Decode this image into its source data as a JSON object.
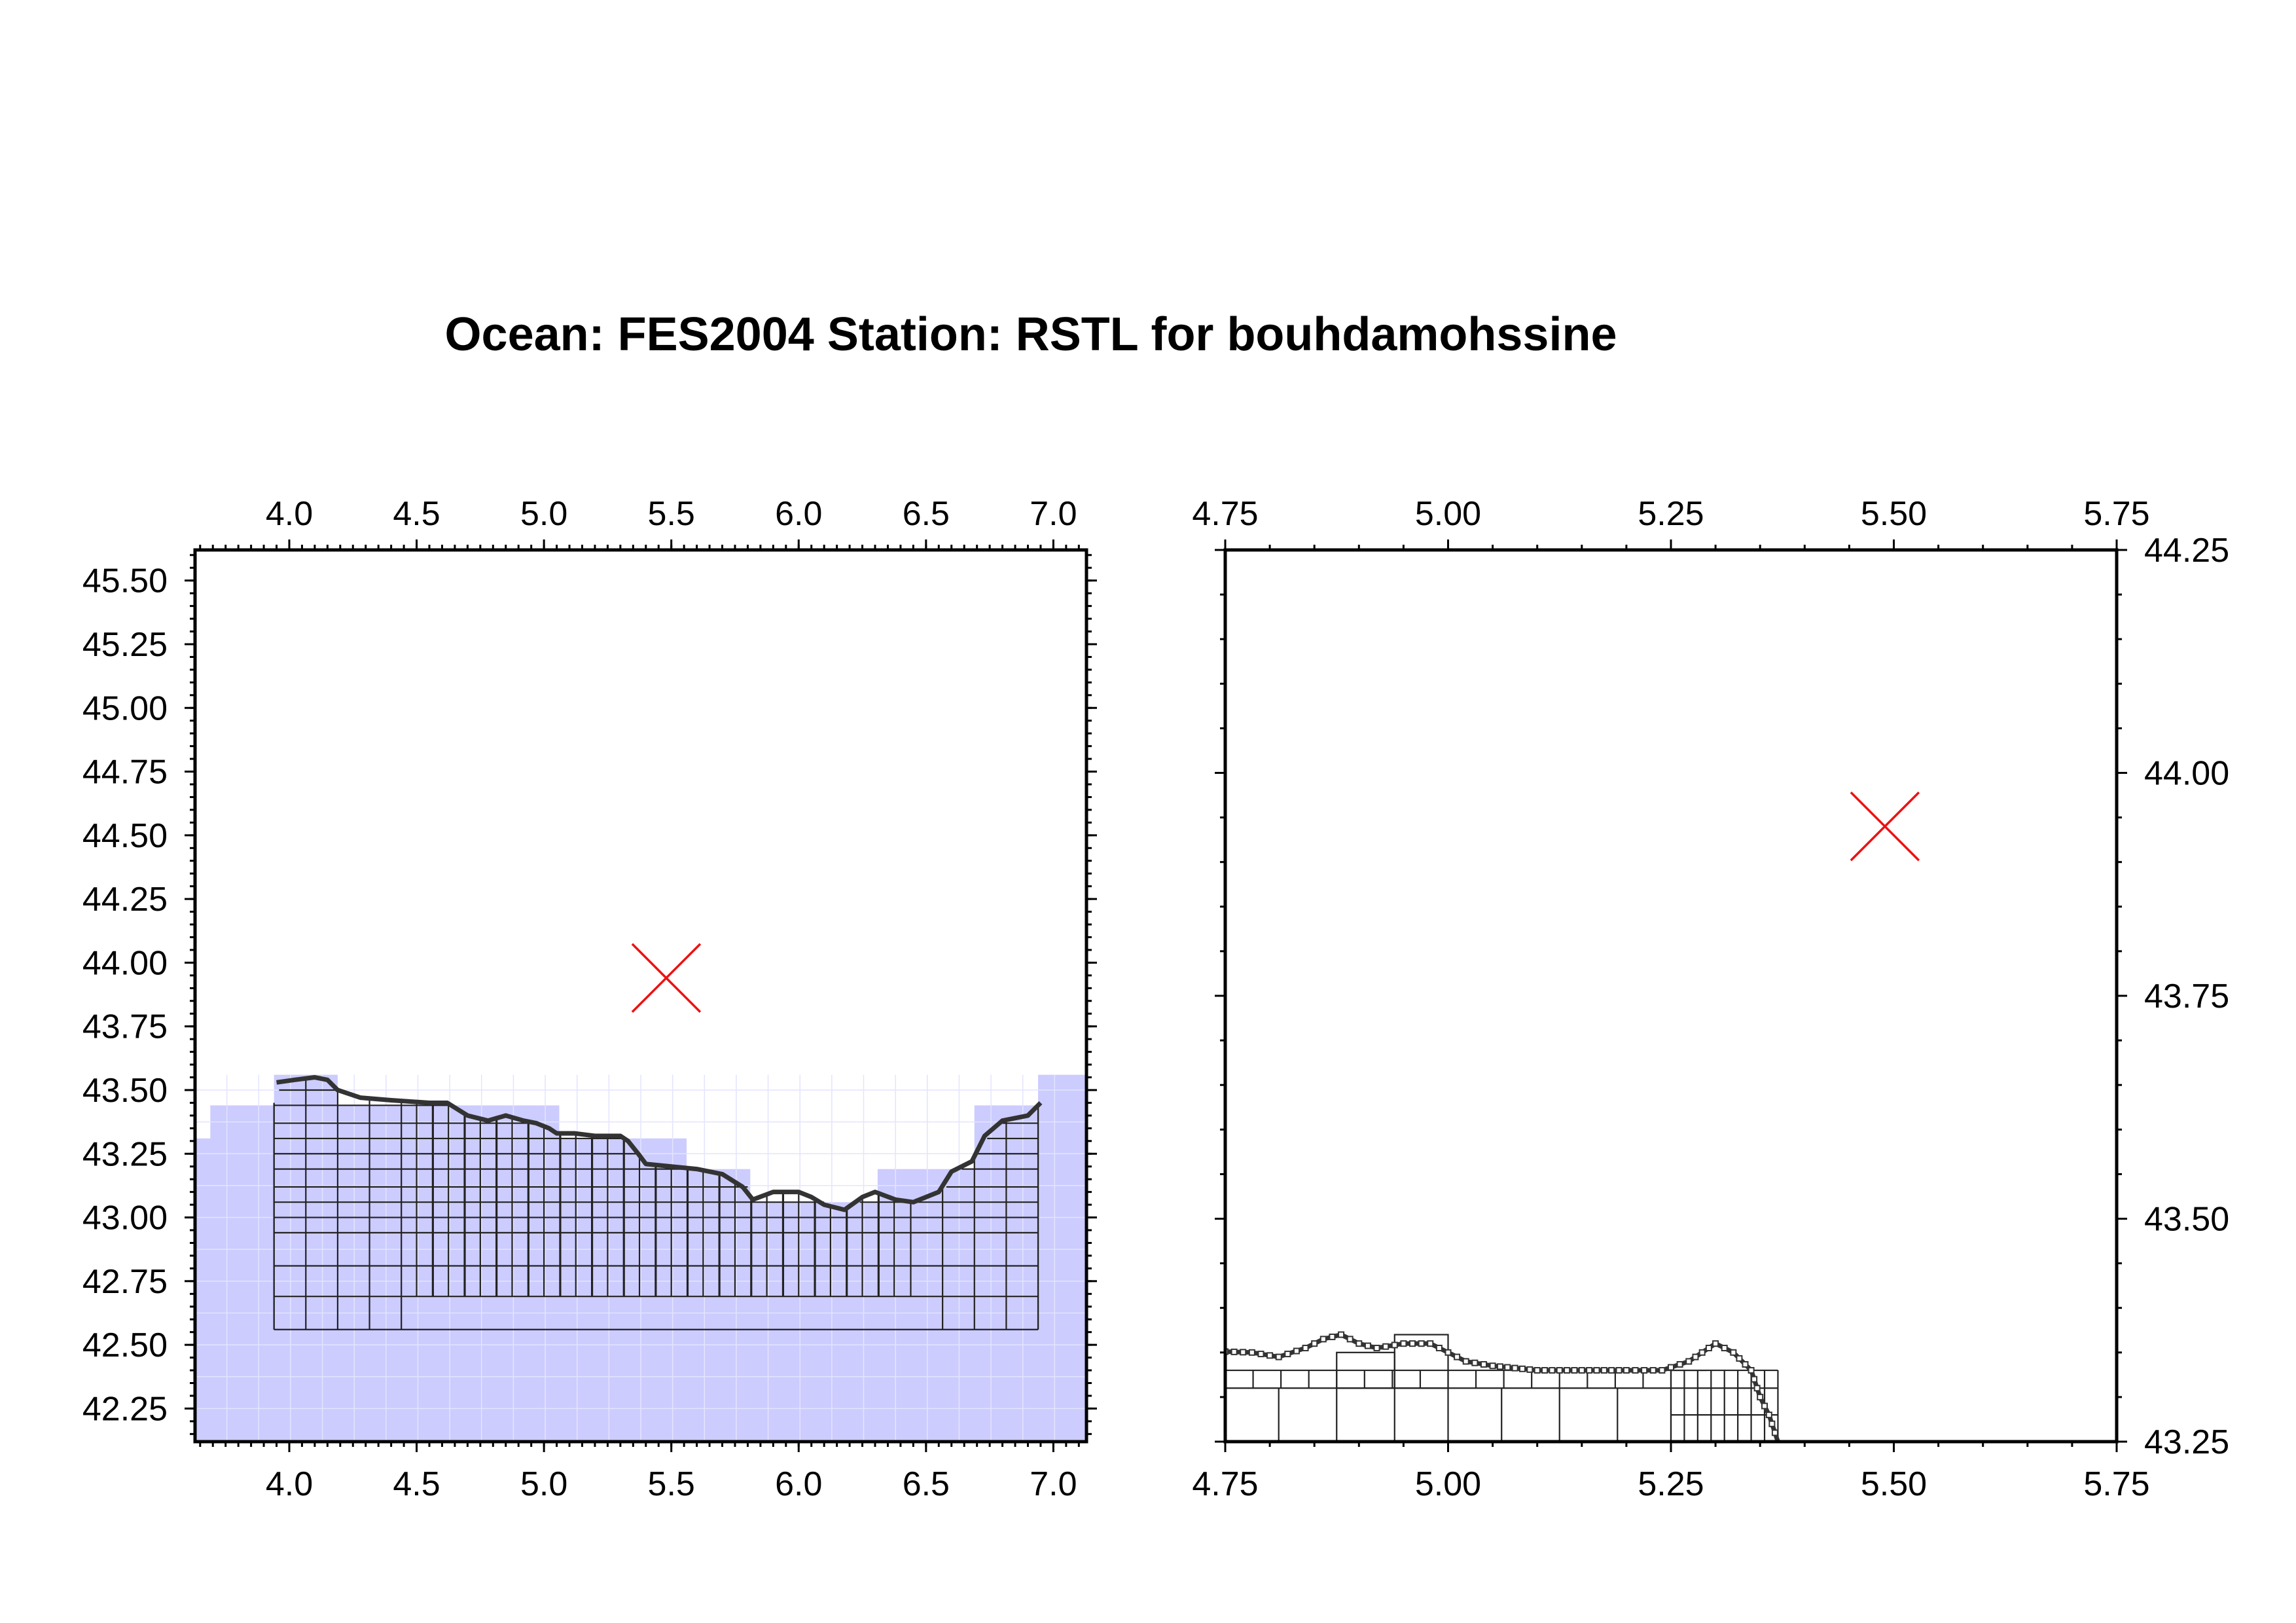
{
  "title": "Ocean: FES2004  Station: RSTL  for bouhdamohssine",
  "colors": {
    "ocean_fill": "#ccccff",
    "ocean_grid": "#e4e4ff",
    "mesh": "#222222",
    "coast": "#333333",
    "station_marker": "#ee1111",
    "axis": "#000000"
  },
  "chart_data": [
    {
      "type": "map",
      "name": "overview",
      "xlim": [
        3.63,
        7.13
      ],
      "ylim": [
        42.12,
        45.62
      ],
      "x_ticks": [
        4.0,
        4.5,
        5.0,
        5.5,
        6.0,
        6.5,
        7.0
      ],
      "x_tick_labels": [
        "4.0",
        "4.5",
        "5.0",
        "5.5",
        "6.0",
        "6.5",
        "7.0"
      ],
      "y_ticks": [
        42.25,
        42.5,
        42.75,
        43.0,
        43.25,
        43.5,
        43.75,
        44.0,
        44.25,
        44.5,
        44.75,
        45.0,
        45.25,
        45.5
      ],
      "y_tick_labels": [
        "42.25",
        "42.50",
        "42.75",
        "43.00",
        "43.25",
        "43.50",
        "43.75",
        "44.00",
        "44.25",
        "44.50",
        "44.75",
        "45.00",
        "45.25",
        "45.50"
      ],
      "x_axis_labels": "top and bottom",
      "y_axis_labels": "left",
      "station": {
        "lon": 5.48,
        "lat": 43.94
      },
      "ocean_mask_profile": [
        [
          3.63,
          43.31
        ],
        [
          3.69,
          43.31
        ],
        [
          3.69,
          43.44
        ],
        [
          3.94,
          43.44
        ],
        [
          3.94,
          43.56
        ],
        [
          4.19,
          43.56
        ],
        [
          4.19,
          43.44
        ],
        [
          5.06,
          43.44
        ],
        [
          5.06,
          43.31
        ],
        [
          5.56,
          43.31
        ],
        [
          5.56,
          43.19
        ],
        [
          5.81,
          43.19
        ],
        [
          5.81,
          43.06
        ],
        [
          6.31,
          43.06
        ],
        [
          6.31,
          43.19
        ],
        [
          6.69,
          43.19
        ],
        [
          6.69,
          43.44
        ],
        [
          6.94,
          43.44
        ],
        [
          6.94,
          43.56
        ],
        [
          7.13,
          43.56
        ]
      ],
      "mesh_bounds": {
        "west": 3.94,
        "east": 6.94,
        "south": 42.56
      },
      "coastline": [
        [
          3.95,
          43.53
        ],
        [
          4.02,
          43.54
        ],
        [
          4.1,
          43.55
        ],
        [
          4.15,
          43.54
        ],
        [
          4.19,
          43.5
        ],
        [
          4.28,
          43.47
        ],
        [
          4.4,
          43.46
        ],
        [
          4.55,
          43.45
        ],
        [
          4.62,
          43.45
        ],
        [
          4.7,
          43.4
        ],
        [
          4.78,
          43.38
        ],
        [
          4.85,
          43.4
        ],
        [
          4.92,
          43.38
        ],
        [
          4.97,
          43.37
        ],
        [
          5.02,
          43.35
        ],
        [
          5.05,
          43.33
        ],
        [
          5.12,
          43.33
        ],
        [
          5.2,
          43.32
        ],
        [
          5.3,
          43.32
        ],
        [
          5.33,
          43.3
        ],
        [
          5.37,
          43.25
        ],
        [
          5.4,
          43.21
        ],
        [
          5.5,
          43.2
        ],
        [
          5.6,
          43.19
        ],
        [
          5.7,
          43.17
        ],
        [
          5.78,
          43.12
        ],
        [
          5.82,
          43.07
        ],
        [
          5.9,
          43.1
        ],
        [
          6.0,
          43.1
        ],
        [
          6.05,
          43.08
        ],
        [
          6.1,
          43.05
        ],
        [
          6.18,
          43.03
        ],
        [
          6.25,
          43.08
        ],
        [
          6.3,
          43.1
        ],
        [
          6.38,
          43.07
        ],
        [
          6.45,
          43.06
        ],
        [
          6.55,
          43.1
        ],
        [
          6.6,
          43.18
        ],
        [
          6.68,
          43.22
        ],
        [
          6.73,
          43.32
        ],
        [
          6.8,
          43.38
        ],
        [
          6.9,
          43.4
        ],
        [
          6.95,
          43.45
        ]
      ]
    },
    {
      "type": "map",
      "name": "zoom",
      "xlim": [
        4.75,
        5.75
      ],
      "ylim": [
        43.25,
        44.25
      ],
      "x_ticks": [
        4.75,
        5.0,
        5.25,
        5.5,
        5.75
      ],
      "x_tick_labels": [
        "4.75",
        "5.00",
        "5.25",
        "5.50",
        "5.75"
      ],
      "y_ticks": [
        43.25,
        43.5,
        43.75,
        44.0,
        44.25
      ],
      "y_tick_labels": [
        "43.25",
        "43.50",
        "43.75",
        "44.00",
        "44.25"
      ],
      "x_axis_labels": "top and bottom",
      "y_axis_labels": "right",
      "station": {
        "lon": 5.49,
        "lat": 43.94
      },
      "coastline": [
        [
          4.75,
          43.351
        ],
        [
          4.78,
          43.35
        ],
        [
          4.81,
          43.345
        ],
        [
          4.84,
          43.355
        ],
        [
          4.86,
          43.365
        ],
        [
          4.88,
          43.37
        ],
        [
          4.9,
          43.36
        ],
        [
          4.92,
          43.355
        ],
        [
          4.95,
          43.36
        ],
        [
          4.98,
          43.36
        ],
        [
          5.0,
          43.35
        ],
        [
          5.02,
          43.34
        ],
        [
          5.05,
          43.335
        ],
        [
          5.1,
          43.33
        ],
        [
          5.15,
          43.33
        ],
        [
          5.2,
          43.33
        ],
        [
          5.24,
          43.33
        ],
        [
          5.27,
          43.34
        ],
        [
          5.3,
          43.36
        ],
        [
          5.32,
          43.35
        ],
        [
          5.34,
          43.33
        ],
        [
          5.35,
          43.3
        ],
        [
          5.36,
          43.28
        ],
        [
          5.37,
          43.25
        ]
      ]
    }
  ]
}
